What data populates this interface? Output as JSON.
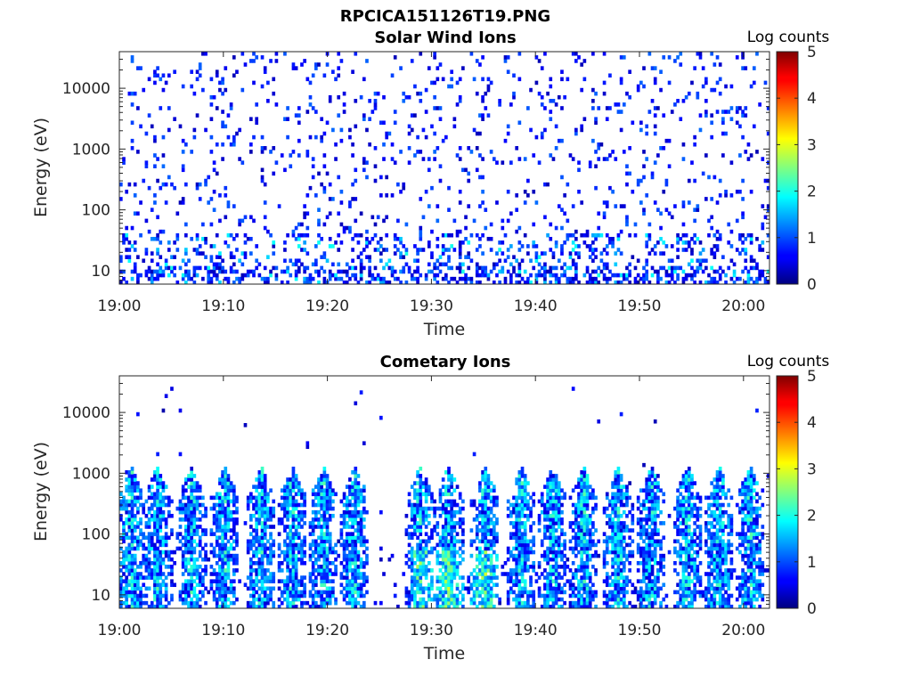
{
  "figure": {
    "title": "RPCICA151126T19.PNG"
  },
  "chart_data": [
    {
      "type": "heatmap",
      "title": "Solar Wind Ions",
      "xlabel": "Time",
      "ylabel": "Energy (eV)",
      "x_tick_labels": [
        "19:00",
        "19:10",
        "19:20",
        "19:30",
        "19:40",
        "19:50",
        "20:00"
      ],
      "x_tick_minutes": [
        0,
        10,
        20,
        30,
        40,
        50,
        60
      ],
      "xlim_minutes": [
        0,
        62.5
      ],
      "y_scale": "log",
      "y_tick_labels": [
        "10",
        "100",
        "1000",
        "10000"
      ],
      "y_tick_values": [
        10,
        100,
        1000,
        10000
      ],
      "ylim": [
        6,
        40000
      ],
      "colorbar": {
        "label": "Log counts",
        "ticks": [
          "0",
          "1",
          "2",
          "3",
          "4",
          "5"
        ],
        "range": [
          0,
          5
        ],
        "colormap": "jet"
      },
      "pattern": "sparse",
      "description_values": {
        "typical_log_counts": [
          0.3,
          1.5
        ],
        "max_log_counts": 2.0
      }
    },
    {
      "type": "heatmap",
      "title": "Cometary Ions",
      "xlabel": "Time",
      "ylabel": "Energy (eV)",
      "x_tick_labels": [
        "19:00",
        "19:10",
        "19:20",
        "19:30",
        "19:40",
        "19:50",
        "20:00"
      ],
      "x_tick_minutes": [
        0,
        10,
        20,
        30,
        40,
        50,
        60
      ],
      "xlim_minutes": [
        0,
        62.5
      ],
      "y_scale": "log",
      "y_tick_labels": [
        "10",
        "100",
        "1000",
        "10000"
      ],
      "y_tick_values": [
        10,
        100,
        1000,
        10000
      ],
      "ylim": [
        6,
        40000
      ],
      "colorbar": {
        "label": "Log counts",
        "ticks": [
          "0",
          "1",
          "2",
          "3",
          "4",
          "5"
        ],
        "range": [
          0,
          5
        ],
        "colormap": "jet"
      },
      "pattern": "bursts",
      "burst_minutes": [
        1,
        3.5,
        6.8,
        10,
        13.5,
        16.5,
        19.5,
        22.5,
        28.8,
        31.5,
        35,
        38.5,
        41.5,
        44.5,
        47.8,
        51,
        54.5,
        57.5,
        60.5
      ],
      "description_values": {
        "typical_log_counts": [
          0.5,
          2.0
        ],
        "max_log_counts": 3.0
      }
    }
  ]
}
